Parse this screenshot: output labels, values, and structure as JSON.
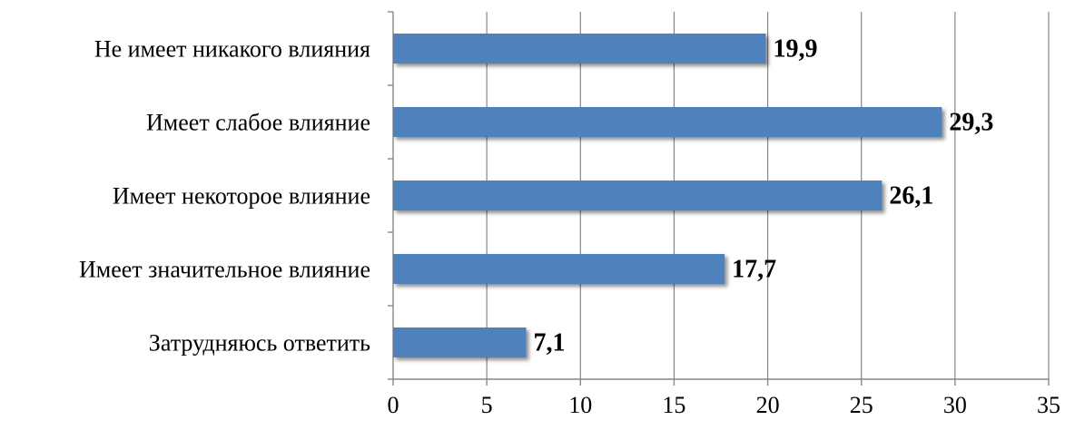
{
  "chart_data": {
    "type": "bar",
    "orientation": "horizontal",
    "categories": [
      "Не имеет никакого влияния",
      "Имеет слабое влияние",
      "Имеет некоторое влияние",
      "Имеет значительное влияние",
      "Затрудняюсь ответить"
    ],
    "values": [
      19.9,
      29.3,
      26.1,
      17.7,
      7.1
    ],
    "value_labels": [
      "19,9",
      "29,3",
      "26,1",
      "17,7",
      "7,1"
    ],
    "x_ticks": [
      0,
      5,
      10,
      15,
      20,
      25,
      30,
      35
    ],
    "x_tick_labels": [
      "0",
      "5",
      "10",
      "15",
      "20",
      "25",
      "30",
      "35"
    ],
    "xlim": [
      0,
      35
    ],
    "title": "",
    "xlabel": "",
    "ylabel": "",
    "grid": "vertical",
    "legend": "none",
    "colors": {
      "bar": "#4F81BD",
      "grid": "#878787",
      "axis": "#878787",
      "text": "#000000"
    }
  }
}
